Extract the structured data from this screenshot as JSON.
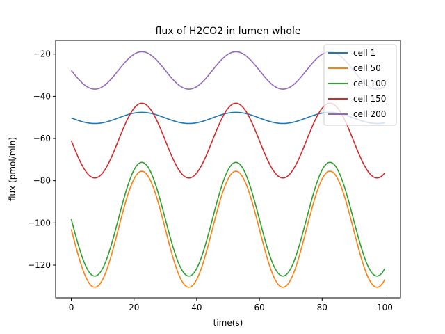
{
  "chart_data": {
    "type": "line",
    "title": "flux of H2CO2 in lumen whole",
    "xlabel": "time(s)",
    "ylabel": "flux (pmol/min)",
    "xlim": [
      -5,
      105
    ],
    "ylim": [
      -135.5,
      -13.5
    ],
    "xticks": [
      0,
      20,
      40,
      60,
      80,
      100
    ],
    "yticks": [
      -120,
      -100,
      -80,
      -60,
      -40,
      -20
    ],
    "grid": false,
    "legend_position": "top-right",
    "x_range": [
      0,
      100
    ],
    "period": 30,
    "series": [
      {
        "name": "cell 1",
        "color": "#1f77b4",
        "mean": -50.25,
        "amplitude": 2.65,
        "phase_peak": 22.5,
        "start_value": -50.6
      },
      {
        "name": "cell 50",
        "color": "#ff7f0e",
        "mean": -103.0,
        "amplitude": 27.5,
        "phase_peak": 22.5,
        "start_value": -101.5
      },
      {
        "name": "cell 100",
        "color": "#2ca02c",
        "mean": -98.25,
        "amplitude": 26.95,
        "phase_peak": 22.5,
        "start_value": -96.0
      },
      {
        "name": "cell 150",
        "color": "#d62728",
        "mean": -61.0,
        "amplitude": 17.7,
        "phase_peak": 22.5,
        "start_value": -59.0
      },
      {
        "name": "cell 200",
        "color": "#9467bd",
        "mean": -27.75,
        "amplitude": 8.85,
        "phase_peak": 22.5,
        "start_value": -26.7
      }
    ]
  }
}
